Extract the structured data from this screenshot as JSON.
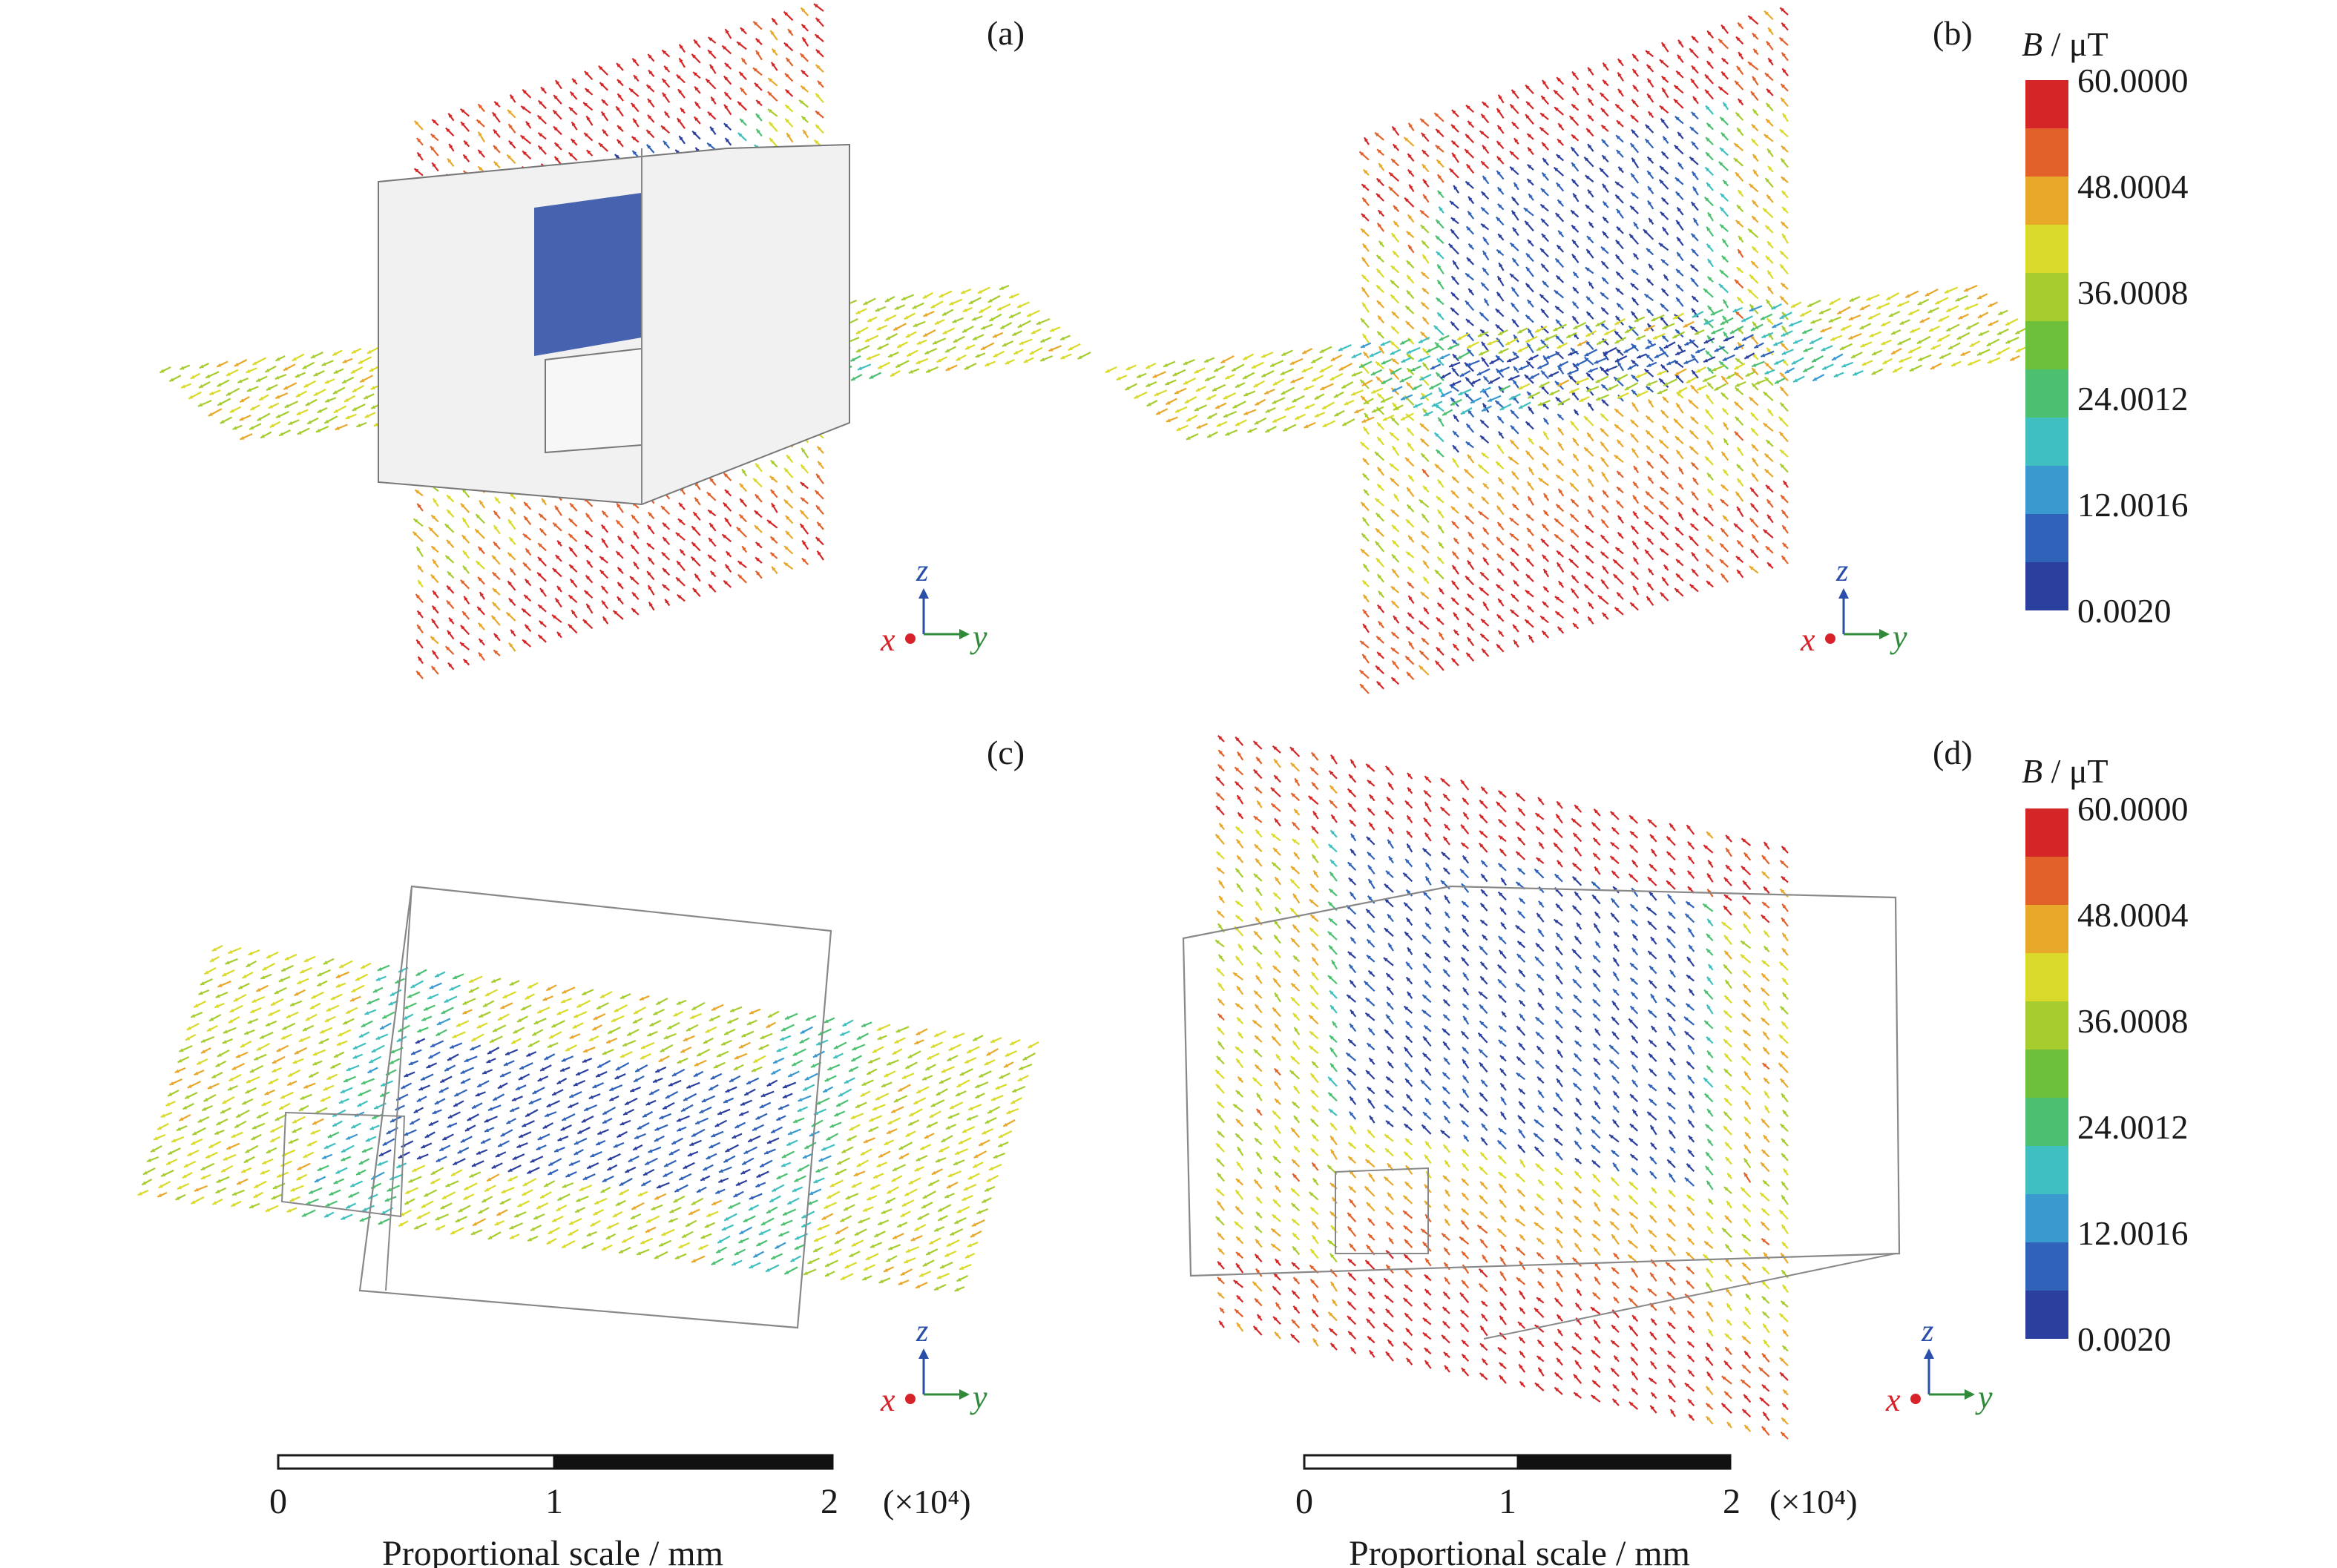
{
  "panels": [
    {
      "id": "a",
      "label": "(a)",
      "view": "two-planes-with-solid-box"
    },
    {
      "id": "b",
      "label": "(b)",
      "view": "two-planes"
    },
    {
      "id": "c",
      "label": "(c)",
      "view": "horizontal-plane-with-wireframe"
    },
    {
      "id": "d",
      "label": "(d)",
      "view": "vertical-plane-with-wireframe"
    }
  ],
  "axes_triad": {
    "x": "x",
    "y": "y",
    "z": "z",
    "colors": {
      "x": "#d8222a",
      "y": "#2f8a3a",
      "z": "#2a4fa8"
    }
  },
  "colorbar": {
    "title_symbol": "B",
    "title_unit": " / μT",
    "ticks": [
      "60.0000",
      "48.0004",
      "36.0008",
      "24.0012",
      "12.0016",
      "0.0020"
    ],
    "colors": [
      "#2a3f9e",
      "#2f62b8",
      "#3a9ad0",
      "#3fbfbf",
      "#4cc070",
      "#6cc03a",
      "#a6cc2e",
      "#dada2a",
      "#e8a82a",
      "#e2602a",
      "#d42626"
    ]
  },
  "scalebars": [
    {
      "ticks": [
        "0",
        "1",
        "2"
      ],
      "multiplier": "(×10⁴)",
      "label": "Proportional scale / mm"
    },
    {
      "ticks": [
        "0",
        "1",
        "2"
      ],
      "multiplier": "(×10⁴)",
      "label": "Proportional scale / mm"
    }
  ]
}
